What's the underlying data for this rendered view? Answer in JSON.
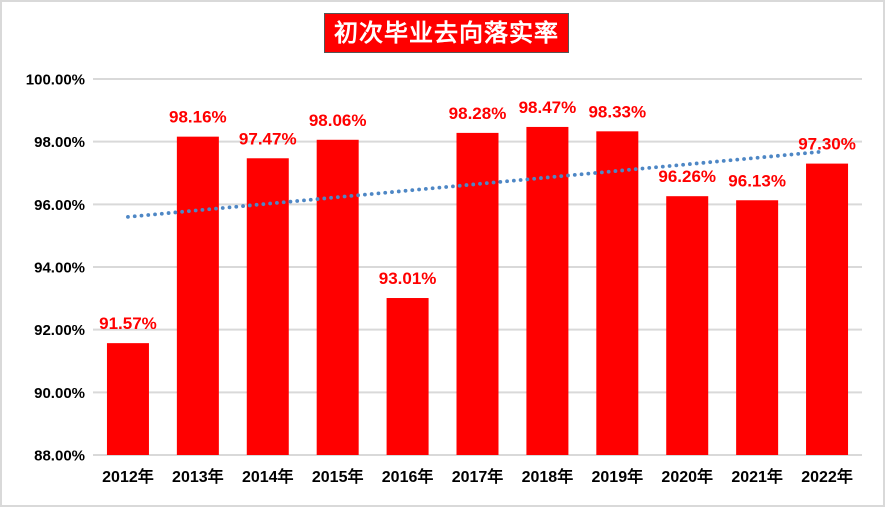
{
  "chart_data": {
    "type": "bar",
    "title": "初次毕业去向落实率",
    "categories": [
      "2012年",
      "2013年",
      "2014年",
      "2015年",
      "2016年",
      "2017年",
      "2018年",
      "2019年",
      "2020年",
      "2021年",
      "2022年"
    ],
    "values": [
      91.57,
      98.16,
      97.47,
      98.06,
      93.01,
      98.28,
      98.47,
      98.33,
      96.26,
      96.13,
      97.3
    ],
    "value_labels": [
      "91.57%",
      "98.16%",
      "97.47%",
      "98.06%",
      "93.01%",
      "98.28%",
      "98.47%",
      "98.33%",
      "96.26%",
      "96.13%",
      "97.30%"
    ],
    "xlabel": "",
    "ylabel": "",
    "ylim": [
      88,
      100
    ],
    "ytick_step": 2,
    "ytick_labels": [
      "88.00%",
      "90.00%",
      "92.00%",
      "94.00%",
      "96.00%",
      "98.00%",
      "100.00%"
    ],
    "grid": true,
    "legend": "none",
    "trendline": {
      "type": "linear",
      "style": "dotted",
      "color": "#4e87c5",
      "spans": "2012年-2022年"
    },
    "colors": {
      "bar": "#ff0000",
      "data_label": "#ff0000",
      "title_bg": "#ff0000",
      "title_text": "#ffffff",
      "axis_text": "#000000",
      "gridline": "#d9d9d9"
    }
  }
}
